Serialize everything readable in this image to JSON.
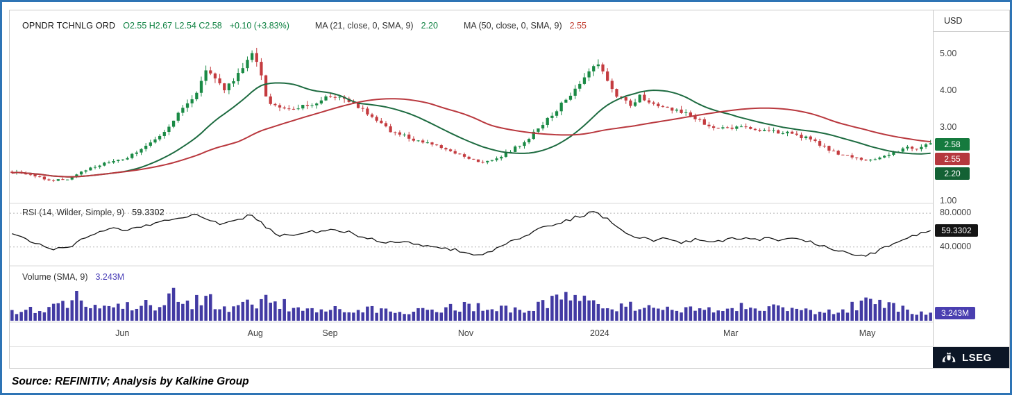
{
  "header": {
    "symbol": "OPNDR TCHNLG ORD",
    "ohlc": "O2.55 H2.67 L2.54 C2.58",
    "change": "+0.10 (+3.83%)",
    "ma1_label": "MA (21, close, 0, SMA, 9)",
    "ma1_value": "2.20",
    "ma2_label": "MA (50, close, 0, SMA, 9)",
    "ma2_value": "2.55",
    "currency": "USD"
  },
  "price_axis": {
    "ticks": [
      {
        "label": "5.00",
        "value": 5.0
      },
      {
        "label": "4.00",
        "value": 4.0
      },
      {
        "label": "3.00",
        "value": 3.0
      },
      {
        "label": "1.00",
        "value": 1.0
      }
    ],
    "badges": [
      {
        "label": "2.58",
        "color": "#157a3e"
      },
      {
        "label": "2.55",
        "color": "#b5383e"
      },
      {
        "label": "2.20",
        "color": "#136134"
      }
    ]
  },
  "rsi": {
    "legend_label": "RSI (14, Wilder, Simple, 9)",
    "legend_value": "59.3302",
    "ticks": [
      "80.0000",
      "40.0000"
    ],
    "badge": "59.3302"
  },
  "volume": {
    "legend_label": "Volume (SMA, 9)",
    "legend_value": "3.243M",
    "badge": "3.243M"
  },
  "x_axis": {
    "ticks": [
      {
        "label": "Jun",
        "f": 0.122
      },
      {
        "label": "Aug",
        "f": 0.266
      },
      {
        "label": "Sep",
        "f": 0.347
      },
      {
        "label": "Nov",
        "f": 0.494
      },
      {
        "label": "2024",
        "f": 0.639
      },
      {
        "label": "Mar",
        "f": 0.781
      },
      {
        "label": "May",
        "f": 0.929
      }
    ]
  },
  "footer": {
    "brand": "LSEG"
  },
  "source_line": "Source: REFINITIV; Analysis by Kalkine Group",
  "chart_data": {
    "type": "candlestick",
    "title": "OPNDR TCHNLG ORD",
    "currency": "USD",
    "x_range": [
      "May 2023",
      "May 2024"
    ],
    "x_axis_labels": [
      "Jun",
      "Aug",
      "Sep",
      "Nov",
      "2024",
      "Mar",
      "May"
    ],
    "price": {
      "ylim": [
        1.0,
        5.5
      ],
      "axis_ticks": [
        5.0,
        4.0,
        3.0,
        1.0
      ],
      "last": {
        "open": 2.55,
        "high": 2.67,
        "low": 2.54,
        "close": 2.58,
        "change": 0.1,
        "change_pct": 3.83
      },
      "num_candles": 200,
      "up_color": "#1a8a45",
      "down_color": "#c43b3f",
      "close_anchors": [
        [
          0.0,
          1.8
        ],
        [
          0.02,
          1.72
        ],
        [
          0.045,
          1.56
        ],
        [
          0.062,
          1.62
        ],
        [
          0.082,
          1.88
        ],
        [
          0.1,
          2.02
        ],
        [
          0.122,
          2.14
        ],
        [
          0.14,
          2.42
        ],
        [
          0.158,
          2.68
        ],
        [
          0.172,
          3.05
        ],
        [
          0.186,
          3.55
        ],
        [
          0.2,
          3.95
        ],
        [
          0.212,
          4.55
        ],
        [
          0.222,
          4.25
        ],
        [
          0.232,
          4.05
        ],
        [
          0.246,
          4.45
        ],
        [
          0.258,
          4.85
        ],
        [
          0.264,
          5.05
        ],
        [
          0.27,
          4.6
        ],
        [
          0.278,
          3.7
        ],
        [
          0.292,
          3.5
        ],
        [
          0.31,
          3.52
        ],
        [
          0.328,
          3.65
        ],
        [
          0.348,
          3.9
        ],
        [
          0.362,
          3.8
        ],
        [
          0.38,
          3.55
        ],
        [
          0.395,
          3.22
        ],
        [
          0.412,
          2.92
        ],
        [
          0.43,
          2.76
        ],
        [
          0.448,
          2.6
        ],
        [
          0.465,
          2.48
        ],
        [
          0.482,
          2.32
        ],
        [
          0.498,
          2.18
        ],
        [
          0.512,
          2.06
        ],
        [
          0.528,
          2.18
        ],
        [
          0.545,
          2.4
        ],
        [
          0.562,
          2.72
        ],
        [
          0.578,
          3.1
        ],
        [
          0.592,
          3.45
        ],
        [
          0.605,
          3.85
        ],
        [
          0.618,
          4.25
        ],
        [
          0.63,
          4.6
        ],
        [
          0.638,
          4.7
        ],
        [
          0.648,
          4.3
        ],
        [
          0.66,
          3.85
        ],
        [
          0.672,
          3.62
        ],
        [
          0.684,
          3.85
        ],
        [
          0.698,
          3.7
        ],
        [
          0.714,
          3.55
        ],
        [
          0.73,
          3.42
        ],
        [
          0.746,
          3.25
        ],
        [
          0.762,
          3.02
        ],
        [
          0.778,
          2.96
        ],
        [
          0.795,
          3.05
        ],
        [
          0.812,
          2.96
        ],
        [
          0.83,
          2.9
        ],
        [
          0.848,
          2.84
        ],
        [
          0.865,
          2.72
        ],
        [
          0.882,
          2.5
        ],
        [
          0.9,
          2.3
        ],
        [
          0.916,
          2.18
        ],
        [
          0.932,
          2.1
        ],
        [
          0.948,
          2.22
        ],
        [
          0.962,
          2.35
        ],
        [
          0.975,
          2.45
        ],
        [
          0.988,
          2.42
        ],
        [
          1.0,
          2.58
        ]
      ]
    },
    "ma21": {
      "period": 21,
      "current": 2.2,
      "color": "#1d6b40"
    },
    "ma50": {
      "period": 50,
      "current": 2.55,
      "color": "#b9383e"
    },
    "rsi": {
      "current": 59.3302,
      "guides": [
        80,
        40
      ],
      "ylim": [
        20,
        90
      ],
      "line_color": "#141414",
      "anchors": [
        [
          0.0,
          55
        ],
        [
          0.02,
          46
        ],
        [
          0.045,
          38
        ],
        [
          0.065,
          42
        ],
        [
          0.085,
          54
        ],
        [
          0.105,
          62
        ],
        [
          0.125,
          60
        ],
        [
          0.145,
          66
        ],
        [
          0.165,
          71
        ],
        [
          0.185,
          75
        ],
        [
          0.2,
          78
        ],
        [
          0.215,
          72
        ],
        [
          0.23,
          67
        ],
        [
          0.246,
          73
        ],
        [
          0.262,
          79
        ],
        [
          0.275,
          64
        ],
        [
          0.29,
          53
        ],
        [
          0.31,
          55
        ],
        [
          0.33,
          58
        ],
        [
          0.35,
          62
        ],
        [
          0.368,
          57
        ],
        [
          0.388,
          50
        ],
        [
          0.405,
          44
        ],
        [
          0.425,
          47
        ],
        [
          0.445,
          42
        ],
        [
          0.465,
          40
        ],
        [
          0.485,
          36
        ],
        [
          0.505,
          30
        ],
        [
          0.522,
          34
        ],
        [
          0.538,
          44
        ],
        [
          0.555,
          52
        ],
        [
          0.572,
          60
        ],
        [
          0.59,
          67
        ],
        [
          0.608,
          73
        ],
        [
          0.625,
          79
        ],
        [
          0.636,
          82
        ],
        [
          0.65,
          71
        ],
        [
          0.665,
          58
        ],
        [
          0.68,
          52
        ],
        [
          0.695,
          48
        ],
        [
          0.712,
          51
        ],
        [
          0.728,
          46
        ],
        [
          0.745,
          49
        ],
        [
          0.76,
          44
        ],
        [
          0.775,
          47
        ],
        [
          0.79,
          51
        ],
        [
          0.806,
          48
        ],
        [
          0.822,
          51
        ],
        [
          0.838,
          48
        ],
        [
          0.855,
          51
        ],
        [
          0.87,
          46
        ],
        [
          0.885,
          40
        ],
        [
          0.9,
          35
        ],
        [
          0.915,
          32
        ],
        [
          0.93,
          29
        ],
        [
          0.945,
          36
        ],
        [
          0.96,
          44
        ],
        [
          0.975,
          51
        ],
        [
          1.0,
          59.33
        ]
      ]
    },
    "volume": {
      "sma_period": 9,
      "sma_current_label": "3.243M",
      "sma_current_millions": 3.243,
      "bar_color": "#423aa3",
      "anchors_millions": [
        [
          0.0,
          4.0
        ],
        [
          0.03,
          4.5
        ],
        [
          0.055,
          7.0
        ],
        [
          0.07,
          9.0
        ],
        [
          0.09,
          5.0
        ],
        [
          0.12,
          5.5
        ],
        [
          0.145,
          6.5
        ],
        [
          0.16,
          5.0
        ],
        [
          0.168,
          6.0
        ],
        [
          0.175,
          18.0
        ],
        [
          0.182,
          6.5
        ],
        [
          0.2,
          8.0
        ],
        [
          0.215,
          8.5
        ],
        [
          0.24,
          5.0
        ],
        [
          0.265,
          7.0
        ],
        [
          0.285,
          8.5
        ],
        [
          0.31,
          4.5
        ],
        [
          0.35,
          5.5
        ],
        [
          0.4,
          4.5
        ],
        [
          0.45,
          4.0
        ],
        [
          0.49,
          6.0
        ],
        [
          0.53,
          4.5
        ],
        [
          0.57,
          5.5
        ],
        [
          0.6,
          9.0
        ],
        [
          0.615,
          10.5
        ],
        [
          0.63,
          7.0
        ],
        [
          0.66,
          6.0
        ],
        [
          0.7,
          5.0
        ],
        [
          0.74,
          4.5
        ],
        [
          0.78,
          5.5
        ],
        [
          0.82,
          5.0
        ],
        [
          0.86,
          4.5
        ],
        [
          0.9,
          4.0
        ],
        [
          0.935,
          8.5
        ],
        [
          0.955,
          6.0
        ],
        [
          0.98,
          3.5
        ],
        [
          1.0,
          2.5
        ]
      ]
    }
  }
}
